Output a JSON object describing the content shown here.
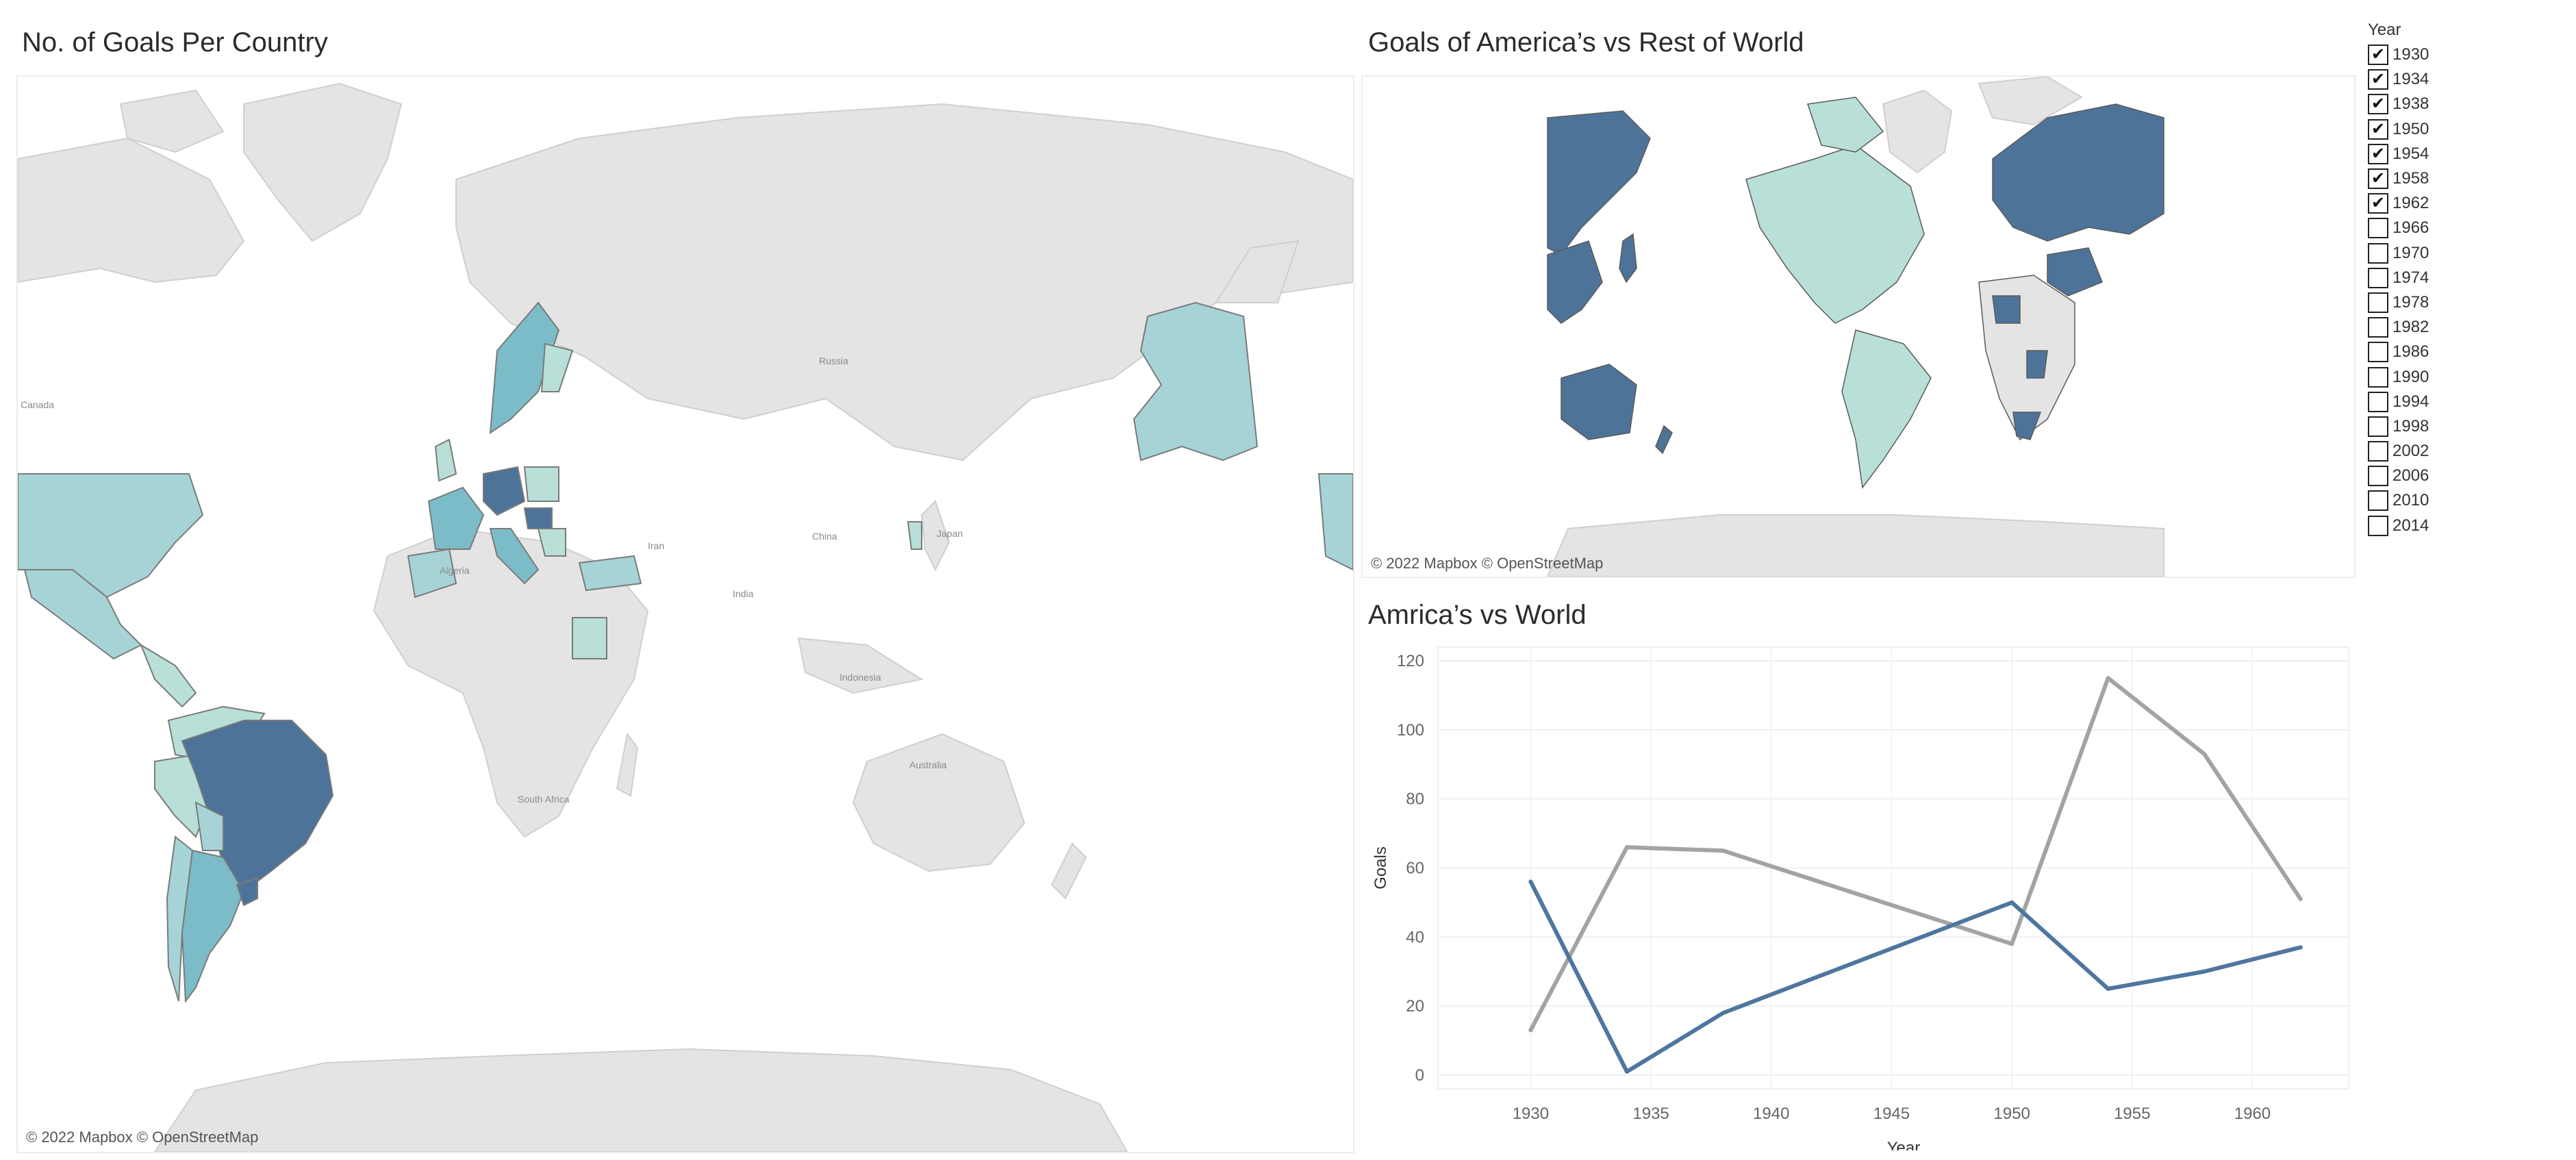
{
  "map1": {
    "title": "No. of Goals Per Country",
    "attribution": "© 2022 Mapbox © OpenStreetMap",
    "labels": [
      "Canada",
      "Russia",
      "China",
      "Iran",
      "Japan",
      "India",
      "Algeria",
      "Indonesia",
      "Australia",
      "South Africa"
    ]
  },
  "map2": {
    "title": "Goals of America’s vs Rest of World",
    "attribution": "© 2022 Mapbox © OpenStreetMap"
  },
  "filter": {
    "title": "Year",
    "items": [
      {
        "label": "1930",
        "checked": true
      },
      {
        "label": "1934",
        "checked": true
      },
      {
        "label": "1938",
        "checked": true
      },
      {
        "label": "1950",
        "checked": true
      },
      {
        "label": "1954",
        "checked": true
      },
      {
        "label": "1958",
        "checked": true
      },
      {
        "label": "1962",
        "checked": true
      },
      {
        "label": "1966",
        "checked": false
      },
      {
        "label": "1970",
        "checked": false
      },
      {
        "label": "1974",
        "checked": false
      },
      {
        "label": "1978",
        "checked": false
      },
      {
        "label": "1982",
        "checked": false
      },
      {
        "label": "1986",
        "checked": false
      },
      {
        "label": "1990",
        "checked": false
      },
      {
        "label": "1994",
        "checked": false
      },
      {
        "label": "1998",
        "checked": false
      },
      {
        "label": "2002",
        "checked": false
      },
      {
        "label": "2006",
        "checked": false
      },
      {
        "label": "2010",
        "checked": false
      },
      {
        "label": "2014",
        "checked": false
      }
    ],
    "check_glyph": "✔"
  },
  "colors": {
    "land": "#e4e4e4",
    "americas_dark": "#4e7398",
    "rest_light": "#b8e0d8",
    "teal_mid": "#7bbcc8",
    "teal_light": "#a6d4d6",
    "line_rest": "#a3a3a3",
    "line_americas": "#4e76a0"
  },
  "chart_data": {
    "type": "line",
    "title": "Amrica’s vs World",
    "xlabel": "Year",
    "ylabel": "Goals",
    "x": [
      1930,
      1934,
      1938,
      1950,
      1954,
      1958,
      1962
    ],
    "series": [
      {
        "values": [
          13,
          66,
          65,
          38,
          115,
          93,
          51
        ],
        "color": "#a3a3a3"
      },
      {
        "values": [
          56,
          1,
          18,
          50,
          25,
          30,
          37
        ],
        "color": "#4e76a0"
      }
    ],
    "xlim": [
      1927,
      1964
    ],
    "ylim": [
      0,
      120
    ],
    "xticks": [
      1930,
      1935,
      1940,
      1945,
      1950,
      1955,
      1960
    ],
    "yticks": [
      0,
      20,
      40,
      60,
      80,
      100,
      120
    ],
    "grid": true,
    "legend": "none"
  }
}
